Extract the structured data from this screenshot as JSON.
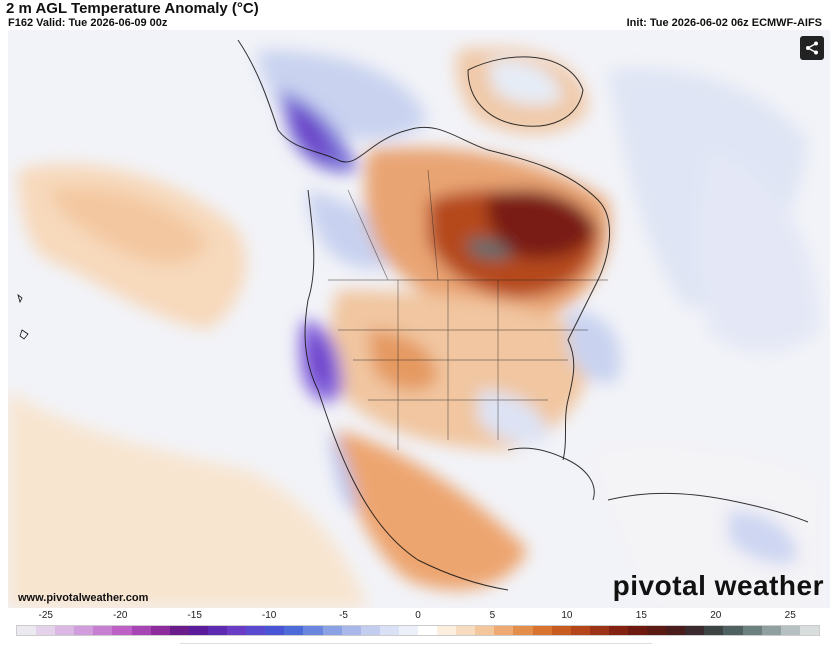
{
  "header": {
    "title": "2 m AGL Temperature Anomaly (°C)",
    "valid": "F162 Valid: Tue 2026-06-09 00z",
    "init": "Init: Tue 2026-06-02 06z ECMWF-AIFS"
  },
  "footer": {
    "website": "www.pivotalweather.com",
    "brand": "pivotal weather"
  },
  "share": {
    "icon": "share-icon"
  },
  "colorbar": {
    "labels": [
      "-25",
      "-20",
      "-15",
      "-10",
      "-5",
      "0",
      "5",
      "10",
      "15",
      "20",
      "25"
    ],
    "min": -27,
    "max": 27,
    "colors": [
      "#ece9f1",
      "#e3d2ea",
      "#dab8e3",
      "#d19ddc",
      "#c77fd2",
      "#bd61c7",
      "#a845b4",
      "#8e2b9d",
      "#6a1c8a",
      "#5a1c9a",
      "#5c2bb0",
      "#6a3cc6",
      "#5a4ad0",
      "#4a55d6",
      "#4c6ad8",
      "#6a86de",
      "#8aa1e4",
      "#a8b8ea",
      "#c3cdf0",
      "#dae0f5",
      "#ecf0f9",
      "#ffffff",
      "#fcefe0",
      "#f8dcc0",
      "#f3c69b",
      "#eeaa72",
      "#e48e4c",
      "#d8742f",
      "#c85c20",
      "#b4461a",
      "#9c3216",
      "#842212",
      "#6e1a10",
      "#5c1a14",
      "#4a1c1c",
      "#3a2a2e",
      "#3c4444",
      "#4e6060",
      "#6c8080",
      "#90a0a0",
      "#b6c0c0",
      "#d8dddd"
    ]
  }
}
